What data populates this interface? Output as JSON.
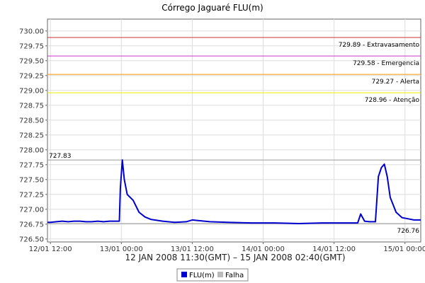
{
  "chart_data": {
    "type": "line",
    "title": "Córrego Jaguaré FLU(m)",
    "xlabel": "12 JAN 2008 11:30(GMT) – 15 JAN 2008 02:40(GMT)",
    "ylabel": "",
    "ylim": [
      726.45,
      730.2
    ],
    "yticks": [
      "730.00",
      "729.75",
      "729.50",
      "729.25",
      "729.00",
      "728.75",
      "728.50",
      "728.25",
      "728.00",
      "727.75",
      "727.50",
      "727.25",
      "727.00",
      "726.75",
      "726.50"
    ],
    "xlim": [
      "2008-01-12T11:30",
      "2008-01-15T02:40"
    ],
    "xticks": [
      {
        "label": "12/01 12:00",
        "x": "2008-01-12T12:00"
      },
      {
        "label": "13/01 00:00",
        "x": "2008-01-13T00:00"
      },
      {
        "label": "13/01 12:00",
        "x": "2008-01-13T12:00"
      },
      {
        "label": "14/01 00:00",
        "x": "2008-01-14T00:00"
      },
      {
        "label": "14/01 12:00",
        "x": "2008-01-14T12:00"
      },
      {
        "label": "15/01 00:00",
        "x": "2008-01-15T00:00"
      }
    ],
    "grid": true,
    "legend_position": "bottom-center",
    "thresholds": [
      {
        "value": 729.89,
        "label": "729.89 - Extravasamento",
        "color": "#cc3333"
      },
      {
        "value": 729.58,
        "label": "729.58 - Emergencia",
        "color": "#cc33cc"
      },
      {
        "value": 729.27,
        "label": "729.27 - Alerta",
        "color": "#ff9900"
      },
      {
        "value": 728.96,
        "label": "728.96 - Atenção",
        "color": "#eeee00"
      }
    ],
    "max_marker": {
      "value": 727.83,
      "label": "727.83",
      "color": "#999999"
    },
    "min_marker": {
      "value": 726.76,
      "label": "726.76",
      "color": "#999999"
    },
    "series": [
      {
        "name": "FLU(m)",
        "color": "#0000cc",
        "points": [
          [
            "2008-01-12T11:30",
            726.78
          ],
          [
            "2008-01-12T12:00",
            726.78
          ],
          [
            "2008-01-12T13:00",
            726.79
          ],
          [
            "2008-01-12T14:00",
            726.8
          ],
          [
            "2008-01-12T15:00",
            726.79
          ],
          [
            "2008-01-12T16:00",
            726.8
          ],
          [
            "2008-01-12T17:00",
            726.8
          ],
          [
            "2008-01-12T18:00",
            726.79
          ],
          [
            "2008-01-12T19:00",
            726.79
          ],
          [
            "2008-01-12T20:00",
            726.8
          ],
          [
            "2008-01-12T21:00",
            726.79
          ],
          [
            "2008-01-12T22:00",
            726.8
          ],
          [
            "2008-01-12T23:00",
            726.8
          ],
          [
            "2008-01-12T23:40",
            726.8
          ],
          [
            "2008-01-12T23:50",
            727.35
          ],
          [
            "2008-01-13T00:10",
            727.83
          ],
          [
            "2008-01-13T00:30",
            727.5
          ],
          [
            "2008-01-13T01:00",
            727.25
          ],
          [
            "2008-01-13T02:00",
            727.15
          ],
          [
            "2008-01-13T03:00",
            726.95
          ],
          [
            "2008-01-13T04:00",
            726.87
          ],
          [
            "2008-01-13T05:00",
            726.83
          ],
          [
            "2008-01-13T07:00",
            726.8
          ],
          [
            "2008-01-13T09:00",
            726.78
          ],
          [
            "2008-01-13T11:00",
            726.79
          ],
          [
            "2008-01-13T12:00",
            726.82
          ],
          [
            "2008-01-13T13:00",
            726.81
          ],
          [
            "2008-01-13T15:00",
            726.79
          ],
          [
            "2008-01-13T18:00",
            726.78
          ],
          [
            "2008-01-13T22:00",
            726.77
          ],
          [
            "2008-01-14T02:00",
            726.77
          ],
          [
            "2008-01-14T06:00",
            726.76
          ],
          [
            "2008-01-14T10:00",
            726.77
          ],
          [
            "2008-01-14T14:00",
            726.77
          ],
          [
            "2008-01-14T16:00",
            726.77
          ],
          [
            "2008-01-14T16:30",
            726.92
          ],
          [
            "2008-01-14T17:10",
            726.8
          ],
          [
            "2008-01-14T18:00",
            726.79
          ],
          [
            "2008-01-14T19:00",
            726.79
          ],
          [
            "2008-01-14T19:30",
            727.55
          ],
          [
            "2008-01-14T20:00",
            727.7
          ],
          [
            "2008-01-14T20:30",
            727.76
          ],
          [
            "2008-01-14T21:00",
            727.55
          ],
          [
            "2008-01-14T21:30",
            727.2
          ],
          [
            "2008-01-14T22:30",
            726.95
          ],
          [
            "2008-01-14T23:30",
            726.86
          ],
          [
            "2008-01-15T00:30",
            726.84
          ],
          [
            "2008-01-15T01:30",
            726.82
          ],
          [
            "2008-01-15T02:40",
            726.82
          ]
        ]
      },
      {
        "name": "Falha",
        "color": "#bbbbbb",
        "points": []
      }
    ]
  }
}
